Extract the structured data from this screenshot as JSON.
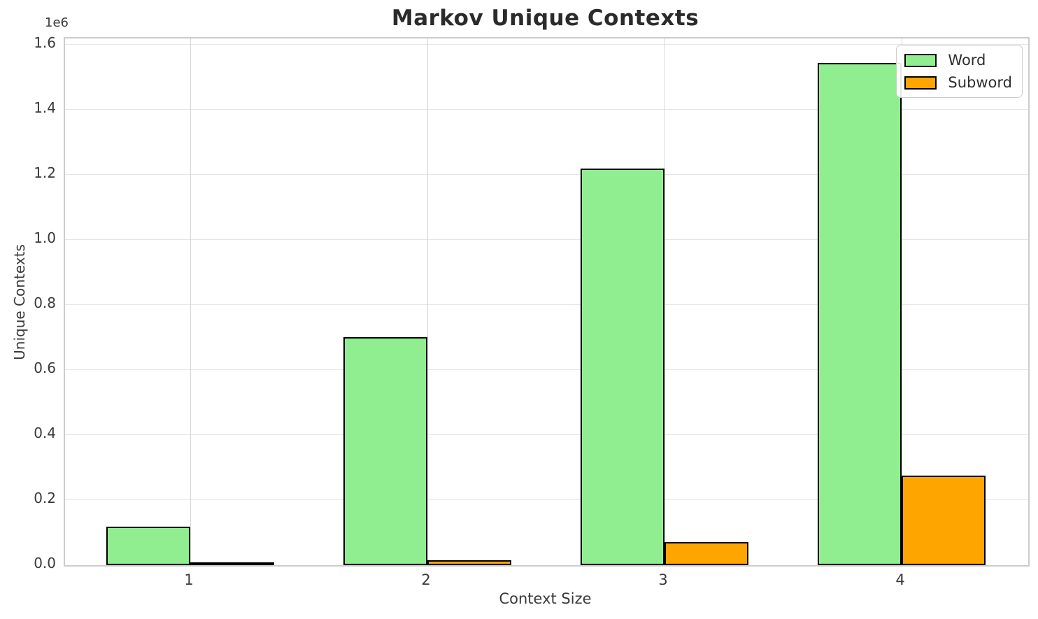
{
  "chart_data": {
    "type": "bar",
    "title": "Markov Unique Contexts",
    "xlabel": "Context Size",
    "ylabel": "Unique Contexts",
    "y_offset_text": "1e6",
    "categories": [
      "1",
      "2",
      "3",
      "4"
    ],
    "series": [
      {
        "name": "Word",
        "color": "#90EE90",
        "values": [
          118000,
          700000,
          1220000,
          1545000
        ]
      },
      {
        "name": "Subword",
        "color": "#FFA500",
        "values": [
          4000,
          14000,
          72000,
          275000
        ]
      }
    ],
    "ylim": [
      0,
      1600000
    ],
    "ytick_values": [
      0,
      200000,
      400000,
      600000,
      800000,
      1000000,
      1200000,
      1400000,
      1600000
    ],
    "ytick_labels": [
      "0.0",
      "0.2",
      "0.4",
      "0.6",
      "0.8",
      "1.0",
      "1.2",
      "1.4",
      "1.6"
    ],
    "grid": true,
    "legend_position": "upper right",
    "bar_edge_color": "#000000",
    "colors": {
      "word": "#90EE90",
      "subword": "#FFA500",
      "grid": "#e6e6e6",
      "spine": "#cccccc",
      "text": "#3a3a3a",
      "title": "#2b2b2b"
    }
  }
}
